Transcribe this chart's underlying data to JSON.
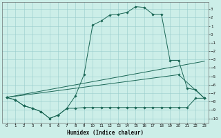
{
  "bg_color": "#cceee8",
  "grid_color": "#99cccc",
  "line_color": "#1a6655",
  "xlabel": "Humidex (Indice chaleur)",
  "xlim": [
    -0.5,
    23.5
  ],
  "ylim": [
    -10.5,
    3.8
  ],
  "yticks": [
    3,
    2,
    1,
    0,
    -1,
    -2,
    -3,
    -4,
    -5,
    -6,
    -7,
    -8,
    -9,
    -10
  ],
  "xticks": [
    0,
    1,
    2,
    3,
    4,
    5,
    6,
    7,
    8,
    9,
    10,
    11,
    12,
    13,
    14,
    15,
    16,
    17,
    18,
    19,
    20,
    21,
    22,
    23
  ],
  "s1x": [
    0,
    1,
    2,
    3,
    4,
    5,
    6,
    7,
    8,
    9,
    10,
    11,
    12,
    13,
    14,
    15,
    16,
    17,
    18,
    19,
    20,
    21,
    22,
    23
  ],
  "s1y": [
    -7.5,
    -7.8,
    -8.5,
    -8.8,
    -9.2,
    -10.0,
    -9.6,
    -8.8,
    -7.3,
    -4.8,
    1.1,
    1.6,
    2.3,
    2.4,
    2.6,
    3.3,
    3.2,
    2.4,
    2.4,
    -3.1,
    -3.1,
    -6.4,
    -6.6,
    -7.6
  ],
  "s2x": [
    0,
    1,
    2,
    3,
    4,
    5,
    6,
    7,
    8,
    9,
    10,
    11,
    12,
    13,
    14,
    15,
    16,
    17,
    18,
    19,
    20,
    21,
    22,
    23
  ],
  "s2y": [
    -7.5,
    -7.8,
    -8.5,
    -8.8,
    -9.2,
    -10.0,
    -9.6,
    -8.8,
    -8.8,
    -8.7,
    -8.7,
    -8.7,
    -8.7,
    -8.7,
    -8.7,
    -8.7,
    -8.7,
    -8.7,
    -8.7,
    -8.7,
    -8.7,
    -8.7,
    -7.6,
    -7.6
  ],
  "s3x": [
    0,
    23
  ],
  "s3y": [
    -7.5,
    -3.2
  ],
  "s4x": [
    0,
    20,
    23
  ],
  "s4y": [
    -7.5,
    -4.8,
    -7.6
  ]
}
